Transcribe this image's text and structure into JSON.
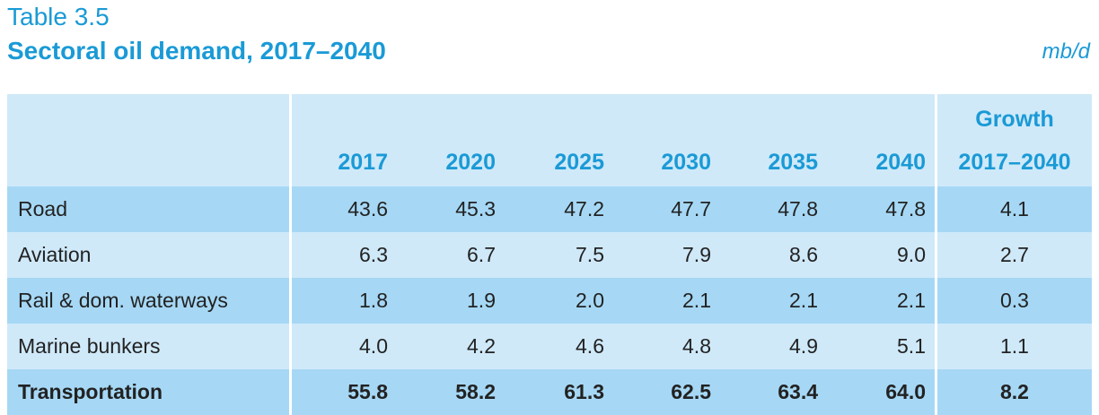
{
  "title": {
    "label": "Table 3.5",
    "heading": "Sectoral oil demand, 2017–2040",
    "unit": "mb/d"
  },
  "columns": {
    "years": [
      "2017",
      "2020",
      "2025",
      "2030",
      "2035",
      "2040"
    ],
    "growth_line1": "Growth",
    "growth_line2": "2017–2040"
  },
  "rows": [
    {
      "label": "Road",
      "values": [
        "43.6",
        "45.3",
        "47.2",
        "47.7",
        "47.8",
        "47.8"
      ],
      "growth": "4.1",
      "bold": false
    },
    {
      "label": "Aviation",
      "values": [
        "6.3",
        "6.7",
        "7.5",
        "7.9",
        "8.6",
        "9.0"
      ],
      "growth": "2.7",
      "bold": false
    },
    {
      "label": "Rail & dom. waterways",
      "values": [
        "1.8",
        "1.9",
        "2.0",
        "2.1",
        "2.1",
        "2.1"
      ],
      "growth": "0.3",
      "bold": false
    },
    {
      "label": "Marine bunkers",
      "values": [
        "4.0",
        "4.2",
        "4.6",
        "4.8",
        "4.9",
        "5.1"
      ],
      "growth": "1.1",
      "bold": false
    },
    {
      "label": "Transportation",
      "values": [
        "55.8",
        "58.2",
        "61.3",
        "62.5",
        "63.4",
        "64.0"
      ],
      "growth": "8.2",
      "bold": true
    }
  ],
  "colors": {
    "accent": "#1a9ad6",
    "row_dark": "#a6d8f5",
    "row_light": "#cfe9f9"
  }
}
